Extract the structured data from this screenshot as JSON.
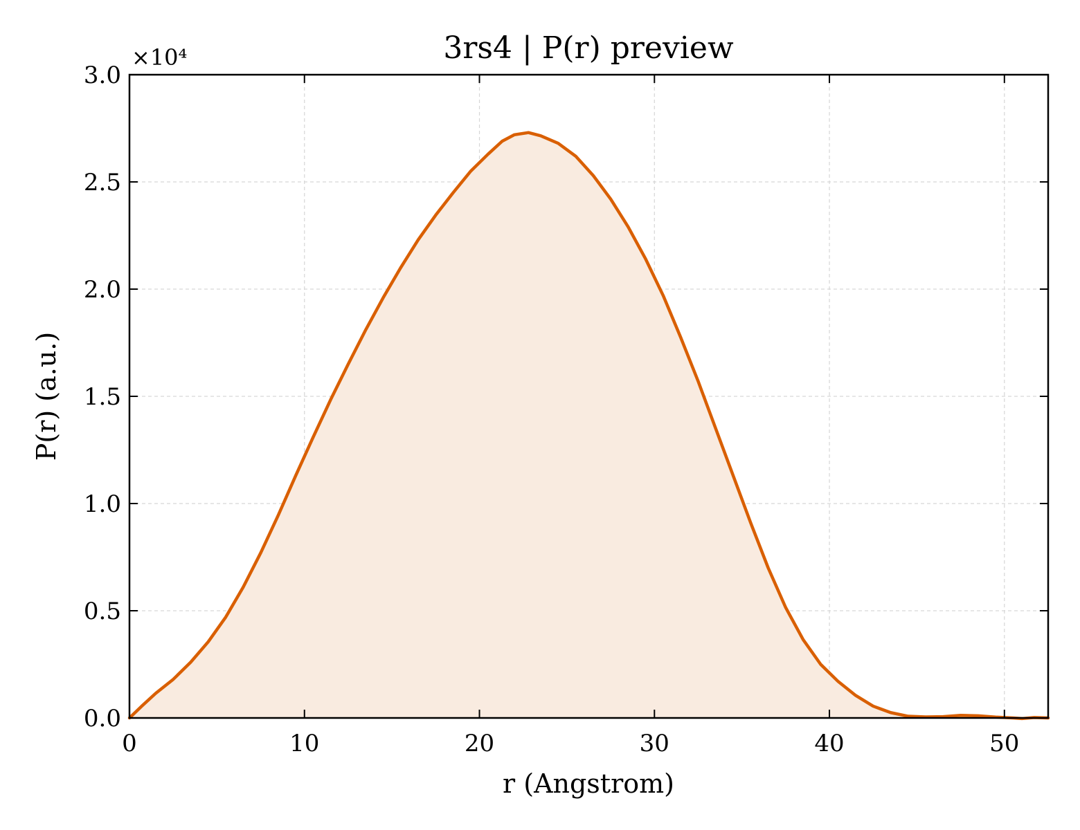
{
  "chart_data": {
    "type": "area",
    "title": "3rs4 | P(r) preview",
    "xlabel": "r (Angstrom)",
    "ylabel": "P(r) (a.u.)",
    "y_offset_label": "×10⁴",
    "xlim": [
      0,
      52.5
    ],
    "ylim": [
      0,
      30000
    ],
    "x_ticks": [
      0,
      10,
      20,
      30,
      40,
      50
    ],
    "x_tick_labels": [
      "0",
      "10",
      "20",
      "30",
      "40",
      "50"
    ],
    "y_ticks": [
      0,
      5000,
      10000,
      15000,
      20000,
      25000,
      30000
    ],
    "y_tick_labels": [
      "0.0",
      "0.5",
      "1.0",
      "1.5",
      "2.0",
      "2.5",
      "3.0"
    ],
    "grid": true,
    "line_color": "#d95f02",
    "fill_color": "#f9ebe0",
    "series": [
      {
        "x": [
          0,
          0.7,
          1.5,
          2.5,
          3.5,
          4.5,
          5.5,
          6.5,
          7.5,
          8.5,
          9.5,
          10.5,
          11.5,
          12.5,
          13.5,
          14.5,
          15.5,
          16.5,
          17.5,
          18.5,
          19.5,
          20.5,
          21.3,
          22.0,
          22.8,
          23.5,
          24.5,
          25.5,
          26.5,
          27.5,
          28.5,
          29.5,
          30.5,
          31.5,
          32.5,
          33.5,
          34.5,
          35.5,
          36.5,
          37.5,
          38.5,
          39.5,
          40.5,
          41.5,
          42.5,
          43.5,
          44.5,
          45.5,
          46.5,
          47.5,
          48.5,
          49.5,
          50.5,
          51.0,
          51.7,
          52.5
        ],
        "y": [
          0,
          550,
          1150,
          1800,
          2600,
          3550,
          4700,
          6100,
          7700,
          9450,
          11300,
          13100,
          14850,
          16500,
          18100,
          19600,
          21000,
          22300,
          23450,
          24500,
          25500,
          26300,
          26900,
          27200,
          27300,
          27150,
          26800,
          26200,
          25300,
          24200,
          22900,
          21400,
          19700,
          17750,
          15700,
          13500,
          11300,
          9100,
          7000,
          5150,
          3650,
          2500,
          1700,
          1050,
          550,
          250,
          80,
          50,
          60,
          120,
          100,
          40,
          0,
          -30,
          20,
          0
        ]
      }
    ]
  }
}
